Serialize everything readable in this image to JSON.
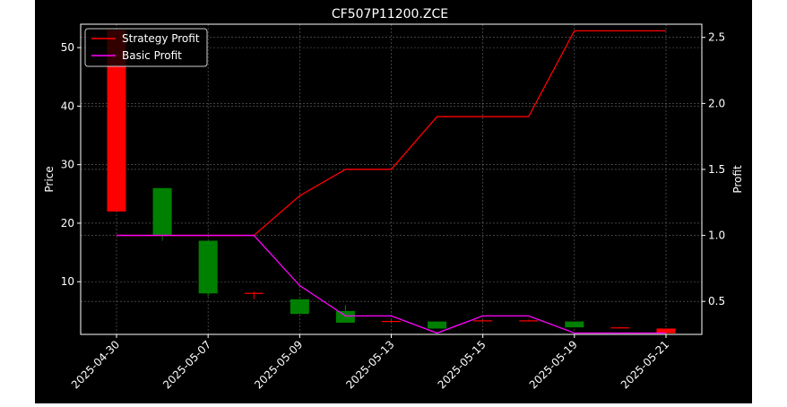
{
  "chart_data": {
    "type": "candlestick+line",
    "title": "CF507P11200.ZCE",
    "ylabel_left": "Price",
    "ylabel_right": "Profit",
    "ylim_left": [
      1,
      54
    ],
    "ylim_right": [
      0.25,
      2.6
    ],
    "yticks_left": [
      "10",
      "20",
      "30",
      "40",
      "50"
    ],
    "yticks_right": [
      "0.5",
      "1.0",
      "1.5",
      "2.0",
      "2.5"
    ],
    "xticks": [
      "2025-04-30",
      "2025-05-07",
      "2025-05-09",
      "2025-05-13",
      "2025-05-15",
      "2025-05-19",
      "2025-05-21"
    ],
    "grid": true,
    "legend_position": "top-left",
    "colors": {
      "up": "#008000",
      "down": "#ff0000",
      "strategy": "#ff0000",
      "basic": "#ff00ff",
      "grid": "#b0b0b0"
    },
    "candles": [
      {
        "open": 22,
        "close": 53,
        "high": 53,
        "low": 22,
        "color": "down"
      },
      {
        "open": 18,
        "close": 26,
        "high": 26,
        "low": 17,
        "color": "up"
      },
      {
        "open": 8,
        "close": 17,
        "high": 17,
        "low": 7.5,
        "color": "up"
      },
      {
        "open": 8,
        "close": 8.1,
        "high": 8.3,
        "low": 7,
        "color": "down"
      },
      {
        "open": 4.5,
        "close": 7,
        "high": 7,
        "low": 4.5,
        "color": "up"
      },
      {
        "open": 3,
        "close": 5,
        "high": 6,
        "low": 3,
        "color": "up"
      },
      {
        "open": 3.2,
        "close": 3.3,
        "high": 3.5,
        "low": 3,
        "color": "down"
      },
      {
        "open": 2,
        "close": 3.2,
        "high": 3.2,
        "low": 2,
        "color": "up"
      },
      {
        "open": 3.3,
        "close": 3.4,
        "high": 3.5,
        "low": 3.3,
        "color": "down"
      },
      {
        "open": 3.3,
        "close": 3.4,
        "high": 3.5,
        "low": 3.3,
        "color": "down"
      },
      {
        "open": 2.2,
        "close": 3.2,
        "high": 3.2,
        "low": 2.2,
        "color": "up"
      },
      {
        "open": 2.1,
        "close": 2.2,
        "high": 2.3,
        "low": 2.1,
        "color": "down"
      },
      {
        "open": 1.2,
        "close": 2.0,
        "high": 2.0,
        "low": 1.2,
        "color": "down"
      }
    ],
    "series": [
      {
        "name": "Strategy Profit",
        "color": "strategy",
        "values": [
          1.0,
          1.0,
          1.0,
          1.0,
          1.3,
          1.5,
          1.5,
          1.9,
          1.9,
          1.9,
          2.55,
          2.55,
          2.55
        ]
      },
      {
        "name": "Basic Profit",
        "color": "basic",
        "values": [
          1.0,
          1.0,
          1.0,
          1.0,
          0.62,
          0.39,
          0.39,
          0.26,
          0.39,
          0.39,
          0.26,
          0.26,
          0.26
        ]
      }
    ]
  }
}
